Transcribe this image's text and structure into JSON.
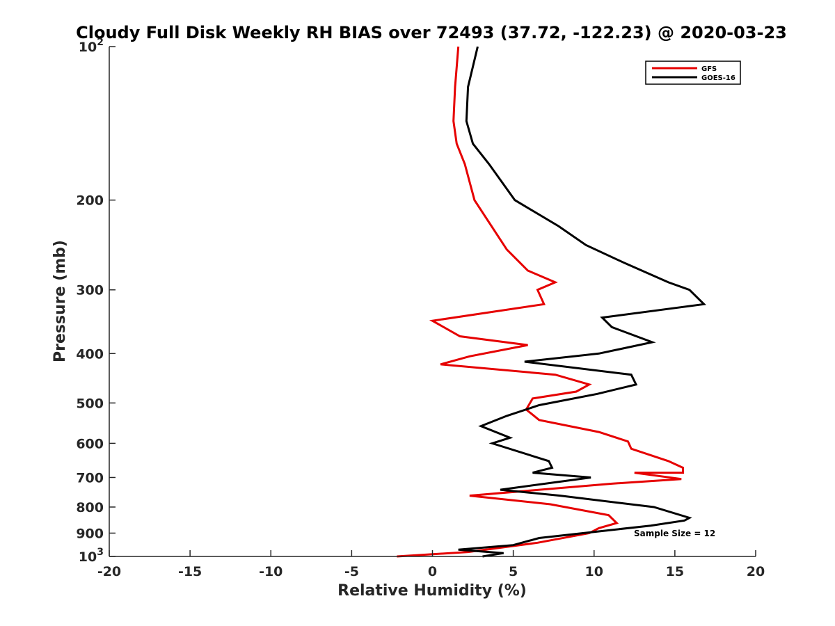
{
  "chart_data": {
    "type": "line",
    "title": "Cloudy Full Disk Weekly RH BIAS over 72493 (37.72, -122.23) @ 2020-03-23",
    "xlabel": "Relative Humidity (%)",
    "ylabel": "Pressure (mb)",
    "xlim": [
      -20,
      20
    ],
    "ylim": [
      100,
      1000
    ],
    "yscale": "log",
    "y_reversed": true,
    "grid": false,
    "x_ticks": [
      -20,
      -15,
      -10,
      -5,
      0,
      5,
      10,
      15,
      20
    ],
    "x_tick_labels": [
      "-20",
      "-15",
      "-10",
      "-5",
      "0",
      "5",
      "10",
      "15",
      "20"
    ],
    "y_ticks": [
      {
        "value": 100,
        "base": "10",
        "exp": "2"
      },
      {
        "value": 200,
        "label": "200"
      },
      {
        "value": 300,
        "label": "300"
      },
      {
        "value": 400,
        "label": "400"
      },
      {
        "value": 500,
        "label": "500"
      },
      {
        "value": 600,
        "label": "600"
      },
      {
        "value": 700,
        "label": "700"
      },
      {
        "value": 800,
        "label": "800"
      },
      {
        "value": 900,
        "label": "900"
      },
      {
        "value": 1000,
        "base": "10",
        "exp": "3"
      }
    ],
    "legend_position": "top-right",
    "annotation": "Sample Size = 12",
    "series": [
      {
        "name": "GFS",
        "color": "#e60000",
        "x": [
          1.6,
          1.4,
          1.3,
          1.5,
          2.0,
          2.6,
          4.6,
          5.9,
          7.6,
          6.5,
          6.9,
          0.0,
          1.7,
          5.9,
          2.3,
          0.5,
          7.6,
          9.7,
          8.9,
          6.2,
          5.8,
          6.6,
          10.3,
          12.1,
          12.3,
          14.6,
          15.5,
          15.5,
          12.5,
          15.4,
          11.1,
          2.3,
          7.3,
          10.9,
          11.4,
          10.3,
          9.7,
          6.5,
          2.2,
          -2.2
        ],
        "y": [
          100,
          120,
          140,
          155,
          170,
          200,
          250,
          275,
          290,
          300,
          320,
          345,
          370,
          385,
          405,
          420,
          440,
          460,
          475,
          490,
          515,
          540,
          570,
          595,
          615,
          650,
          670,
          685,
          685,
          705,
          720,
          760,
          790,
          830,
          860,
          880,
          900,
          940,
          980,
          1000
        ]
      },
      {
        "name": "GOES-16",
        "color": "#000000",
        "x": [
          2.8,
          2.2,
          2.1,
          2.5,
          3.5,
          5.1,
          7.8,
          9.5,
          11.8,
          14.6,
          15.9,
          16.8,
          10.5,
          11.1,
          13.6,
          10.3,
          5.7,
          12.3,
          12.6,
          10.2,
          6.6,
          4.6,
          3.0,
          4.8,
          3.7,
          7.2,
          7.4,
          6.2,
          9.8,
          4.2,
          7.9,
          13.7,
          15.9,
          15.6,
          13.5,
          6.6,
          5.0,
          1.6,
          4.4,
          3.1
        ],
        "y": [
          100,
          120,
          140,
          155,
          170,
          200,
          225,
          245,
          265,
          290,
          300,
          320,
          340,
          355,
          380,
          400,
          415,
          440,
          460,
          480,
          505,
          530,
          555,
          585,
          600,
          650,
          670,
          685,
          700,
          740,
          760,
          800,
          840,
          850,
          870,
          920,
          950,
          970,
          985,
          1000
        ]
      }
    ]
  }
}
